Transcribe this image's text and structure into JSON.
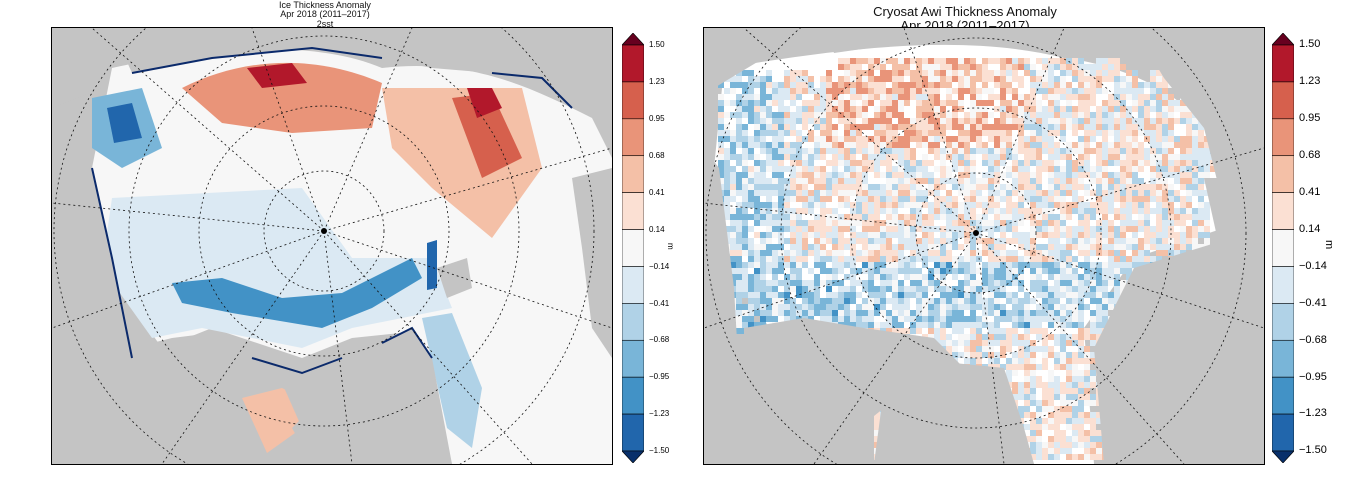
{
  "panels": [
    {
      "title_lines": [
        "Ice Thickness Anomaly",
        "Apr 2018 (2011–2017)",
        "2sst"
      ],
      "colorbar": {
        "unit": "m",
        "ticks": [
          "1.50",
          "1.23",
          "0.95",
          "0.68",
          "0.41",
          "0.14",
          "−0.14",
          "−0.41",
          "−0.68",
          "−0.95",
          "−1.23",
          "−1.50"
        ]
      }
    },
    {
      "title_lines": [
        "Cryosat Awi Thickness Anomaly",
        "Apr 2018 (2011–2017)"
      ],
      "colorbar": {
        "unit": "m",
        "ticks": [
          "1.50",
          "1.23",
          "0.95",
          "0.68",
          "0.41",
          "0.14",
          "−0.14",
          "−0.41",
          "−0.68",
          "−0.95",
          "−1.23",
          "−1.50"
        ]
      }
    }
  ],
  "palette": [
    "#67001f",
    "#b2182b",
    "#d6604d",
    "#e99479",
    "#f4c0a7",
    "#fbe0d3",
    "#f7f7f7",
    "#dbe9f3",
    "#b0d2e7",
    "#79b5d8",
    "#4292c6",
    "#2166ac",
    "#08306b"
  ],
  "colors": {
    "land": "#c4c4c4",
    "ocean_ice": "#f7f7f7"
  }
}
